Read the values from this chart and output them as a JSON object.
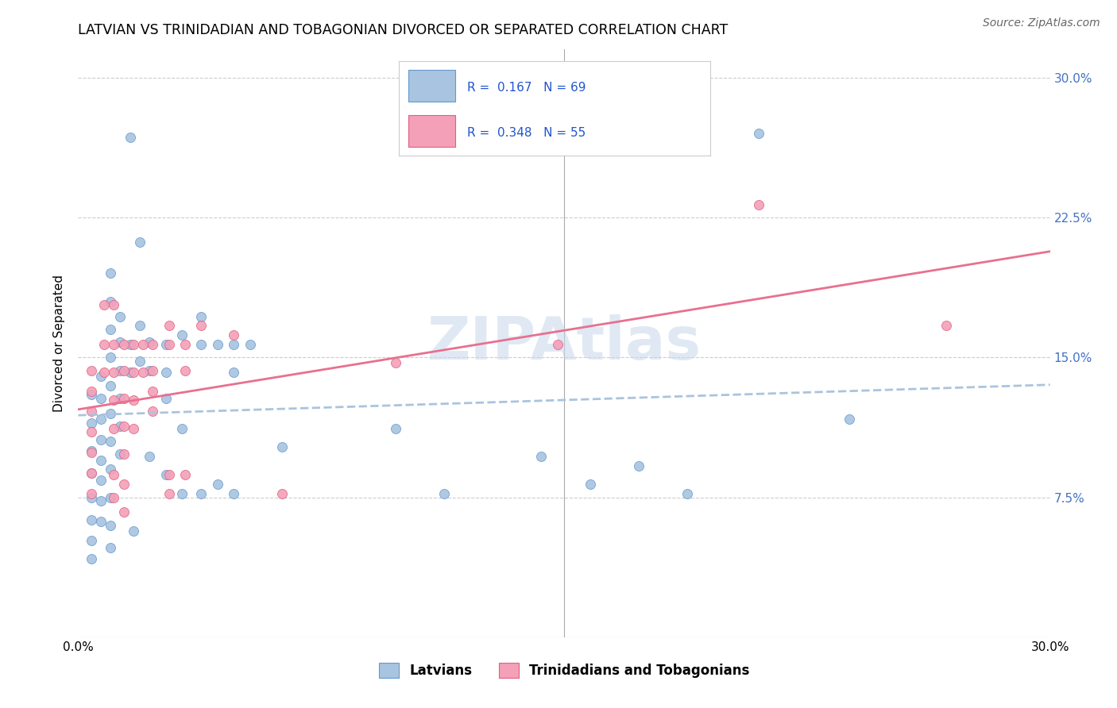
{
  "title": "LATVIAN VS TRINIDADIAN AND TOBAGONIAN DIVORCED OR SEPARATED CORRELATION CHART",
  "source": "Source: ZipAtlas.com",
  "ylabel": "Divorced or Separated",
  "ytick_labels": [
    "7.5%",
    "15.0%",
    "22.5%",
    "30.0%"
  ],
  "ytick_values": [
    0.075,
    0.15,
    0.225,
    0.3
  ],
  "xmin": 0.0,
  "xmax": 0.3,
  "ymin": 0.0,
  "ymax": 0.315,
  "watermark": "ZIPAtlas",
  "latvian_color": "#a8c4e0",
  "latvian_edge_color": "#6699cc",
  "trinidadian_color": "#f4a0b8",
  "trinidadian_edge_color": "#e06080",
  "latvian_line_color": "#aac4dd",
  "trinidadian_line_color": "#e87090",
  "latvian_scatter": [
    [
      0.004,
      0.13
    ],
    [
      0.004,
      0.115
    ],
    [
      0.004,
      0.1
    ],
    [
      0.004,
      0.088
    ],
    [
      0.004,
      0.075
    ],
    [
      0.004,
      0.063
    ],
    [
      0.004,
      0.052
    ],
    [
      0.004,
      0.042
    ],
    [
      0.007,
      0.14
    ],
    [
      0.007,
      0.128
    ],
    [
      0.007,
      0.117
    ],
    [
      0.007,
      0.106
    ],
    [
      0.007,
      0.095
    ],
    [
      0.007,
      0.084
    ],
    [
      0.007,
      0.073
    ],
    [
      0.007,
      0.062
    ],
    [
      0.01,
      0.195
    ],
    [
      0.01,
      0.18
    ],
    [
      0.01,
      0.165
    ],
    [
      0.01,
      0.15
    ],
    [
      0.01,
      0.135
    ],
    [
      0.01,
      0.12
    ],
    [
      0.01,
      0.105
    ],
    [
      0.01,
      0.09
    ],
    [
      0.01,
      0.075
    ],
    [
      0.01,
      0.06
    ],
    [
      0.01,
      0.048
    ],
    [
      0.013,
      0.172
    ],
    [
      0.013,
      0.158
    ],
    [
      0.013,
      0.143
    ],
    [
      0.013,
      0.128
    ],
    [
      0.013,
      0.113
    ],
    [
      0.013,
      0.098
    ],
    [
      0.016,
      0.268
    ],
    [
      0.016,
      0.157
    ],
    [
      0.016,
      0.142
    ],
    [
      0.019,
      0.212
    ],
    [
      0.019,
      0.167
    ],
    [
      0.019,
      0.148
    ],
    [
      0.022,
      0.158
    ],
    [
      0.022,
      0.143
    ],
    [
      0.022,
      0.097
    ],
    [
      0.027,
      0.157
    ],
    [
      0.027,
      0.142
    ],
    [
      0.027,
      0.128
    ],
    [
      0.027,
      0.087
    ],
    [
      0.032,
      0.162
    ],
    [
      0.032,
      0.112
    ],
    [
      0.032,
      0.077
    ],
    [
      0.038,
      0.172
    ],
    [
      0.038,
      0.157
    ],
    [
      0.038,
      0.077
    ],
    [
      0.043,
      0.157
    ],
    [
      0.043,
      0.082
    ],
    [
      0.048,
      0.157
    ],
    [
      0.048,
      0.142
    ],
    [
      0.048,
      0.077
    ],
    [
      0.053,
      0.157
    ],
    [
      0.063,
      0.102
    ],
    [
      0.098,
      0.112
    ],
    [
      0.113,
      0.077
    ],
    [
      0.143,
      0.097
    ],
    [
      0.158,
      0.082
    ],
    [
      0.173,
      0.092
    ],
    [
      0.188,
      0.077
    ],
    [
      0.21,
      0.27
    ],
    [
      0.238,
      0.117
    ],
    [
      0.017,
      0.057
    ]
  ],
  "trinidadian_scatter": [
    [
      0.004,
      0.143
    ],
    [
      0.004,
      0.132
    ],
    [
      0.004,
      0.121
    ],
    [
      0.004,
      0.11
    ],
    [
      0.004,
      0.099
    ],
    [
      0.004,
      0.088
    ],
    [
      0.004,
      0.077
    ],
    [
      0.008,
      0.178
    ],
    [
      0.008,
      0.157
    ],
    [
      0.008,
      0.142
    ],
    [
      0.011,
      0.178
    ],
    [
      0.011,
      0.157
    ],
    [
      0.011,
      0.142
    ],
    [
      0.011,
      0.127
    ],
    [
      0.011,
      0.112
    ],
    [
      0.011,
      0.087
    ],
    [
      0.011,
      0.075
    ],
    [
      0.014,
      0.157
    ],
    [
      0.014,
      0.143
    ],
    [
      0.014,
      0.128
    ],
    [
      0.014,
      0.113
    ],
    [
      0.014,
      0.098
    ],
    [
      0.014,
      0.082
    ],
    [
      0.014,
      0.067
    ],
    [
      0.017,
      0.157
    ],
    [
      0.017,
      0.142
    ],
    [
      0.017,
      0.127
    ],
    [
      0.017,
      0.112
    ],
    [
      0.02,
      0.157
    ],
    [
      0.02,
      0.142
    ],
    [
      0.023,
      0.157
    ],
    [
      0.023,
      0.143
    ],
    [
      0.023,
      0.132
    ],
    [
      0.023,
      0.121
    ],
    [
      0.028,
      0.167
    ],
    [
      0.028,
      0.157
    ],
    [
      0.028,
      0.087
    ],
    [
      0.028,
      0.077
    ],
    [
      0.033,
      0.157
    ],
    [
      0.033,
      0.143
    ],
    [
      0.033,
      0.087
    ],
    [
      0.038,
      0.167
    ],
    [
      0.048,
      0.162
    ],
    [
      0.063,
      0.077
    ],
    [
      0.098,
      0.147
    ],
    [
      0.148,
      0.157
    ],
    [
      0.21,
      0.232
    ],
    [
      0.268,
      0.167
    ]
  ]
}
